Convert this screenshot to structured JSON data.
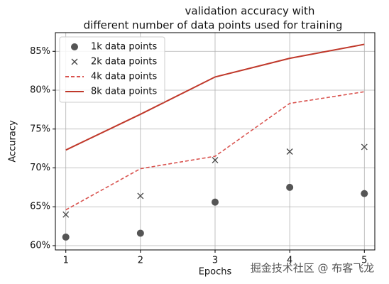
{
  "chart_data": {
    "type": "line",
    "title_lines": [
      "validation accuracy with",
      "different number of data points used for training"
    ],
    "xlabel": "Epochs",
    "ylabel": "Accuracy",
    "x": [
      1,
      2,
      3,
      4,
      5
    ],
    "xlim": [
      0.86,
      5.14
    ],
    "xticks": [
      1,
      2,
      3,
      4,
      5
    ],
    "ylim": [
      59.45,
      87.4
    ],
    "yticks": [
      {
        "value": 60,
        "label": "60%"
      },
      {
        "value": 65,
        "label": "65%"
      },
      {
        "value": 70,
        "label": "70%"
      },
      {
        "value": 75,
        "label": "75%"
      },
      {
        "value": 80,
        "label": "80%"
      },
      {
        "value": 85,
        "label": "85%"
      }
    ],
    "grid": true,
    "legend": "upper-left",
    "series": [
      {
        "name": "1k data points",
        "color": "#555555",
        "style": "dot",
        "values": [
          61.1,
          61.6,
          65.6,
          67.5,
          66.7
        ]
      },
      {
        "name": "2k data points",
        "color": "#444444",
        "style": "x",
        "values": [
          64.0,
          66.4,
          71.0,
          72.1,
          72.7
        ]
      },
      {
        "name": "4k data points",
        "color": "#d9534f",
        "style": "dashed",
        "values": [
          64.6,
          69.9,
          71.5,
          78.3,
          79.8
        ]
      },
      {
        "name": "8k data points",
        "color": "#c0392b",
        "style": "solid",
        "values": [
          72.3,
          76.9,
          81.7,
          84.1,
          85.9
        ]
      }
    ]
  },
  "watermark": "掘金技术社区 @ 布客飞龙"
}
